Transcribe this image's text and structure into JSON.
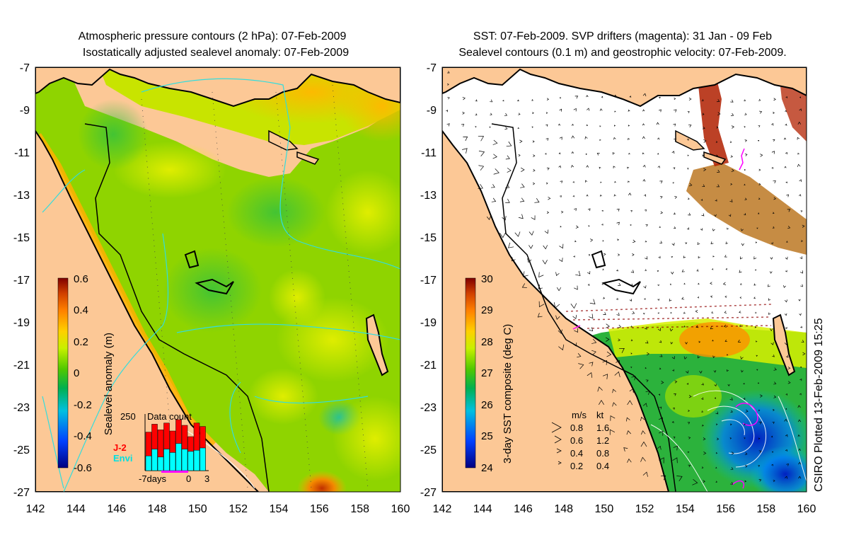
{
  "left_panel": {
    "title_line1": "Atmospheric pressure contours (2 hPa): 07-Feb-2009",
    "title_line2": "Isostatically adjusted sealevel anomaly: 07-Feb-2009",
    "colorbar_label": "Sealevel anomaly (m)",
    "colorbar_ticks": [
      "0.6",
      "0.4",
      "0.2",
      "0",
      "-0.2",
      "-0.4",
      "-0.6"
    ],
    "inset": {
      "title": "Data count",
      "y_max_label": "250",
      "series": [
        {
          "name": "J-2",
          "color": "#ff0000"
        },
        {
          "name": "Envi",
          "color": "#00ffff"
        }
      ],
      "x_labels": [
        "-7days",
        "0",
        "3"
      ],
      "j2_counts": [
        170,
        205,
        180,
        210,
        175,
        225,
        200,
        150,
        210,
        195
      ],
      "envi_counts": [
        65,
        95,
        60,
        95,
        80,
        120,
        95,
        85,
        90,
        100
      ]
    }
  },
  "right_panel": {
    "title_line1": "SST: 07-Feb-2009. SVP drifters (magenta): 31 Jan - 09 Feb",
    "title_line2": "Sealevel contours (0.1 m) and geostrophic velocity: 07-Feb-2009.",
    "colorbar_label": "3-day SST composite (deg C)",
    "colorbar_ticks": [
      "30",
      "29",
      "28",
      "27",
      "26",
      "25",
      "24"
    ],
    "velocity_legend": {
      "header_ms": "m/s",
      "header_kt": "kt",
      "rows": [
        {
          "ms": "0.8",
          "kt": "1.6"
        },
        {
          "ms": "0.6",
          "kt": "1.2"
        },
        {
          "ms": "0.4",
          "kt": "0.8"
        },
        {
          "ms": "0.2",
          "kt": "0.4"
        }
      ]
    }
  },
  "axes": {
    "lat_ticks": [
      "-7",
      "-9",
      "-11",
      "-13",
      "-15",
      "-17",
      "-19",
      "-21",
      "-23",
      "-25",
      "-27"
    ],
    "lon_ticks": [
      "142",
      "144",
      "146",
      "148",
      "150",
      "152",
      "154",
      "156",
      "158",
      "160"
    ]
  },
  "credit": "CSIRO Plotted 13-Feb-2009 15:25",
  "colors": {
    "land": "#fcc896",
    "coast": "#000000",
    "pressure_contour": "#33dddd",
    "sealevel_contour": "#ffffff",
    "drifter": "#ff00ff",
    "sla_base": "#8fd400"
  }
}
